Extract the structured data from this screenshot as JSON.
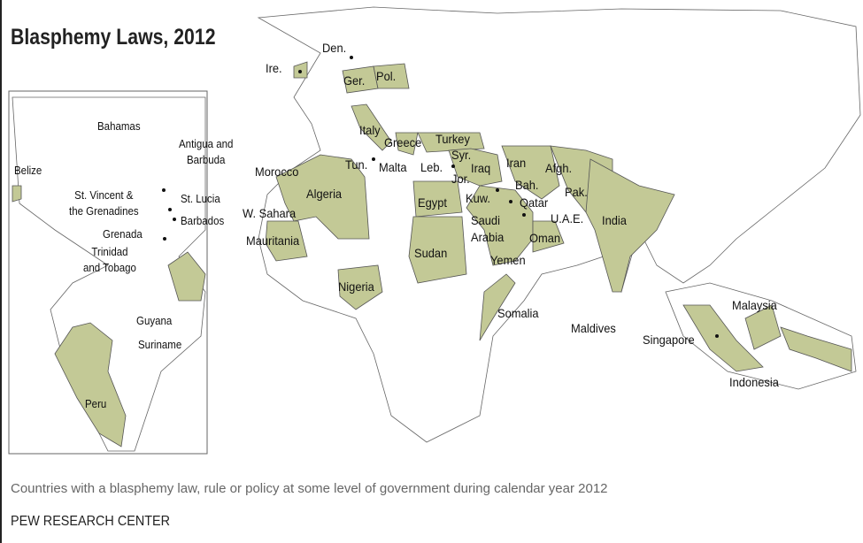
{
  "header": {
    "title": "Blasphemy Laws, 2012"
  },
  "map": {
    "labels": [
      "Den.",
      "Ire.",
      "Ger.",
      "Pol.",
      "Italy",
      "Greece",
      "Turkey",
      "Syr.",
      "Morocco",
      "Tun.",
      "Malta",
      "Leb.",
      "Iraq",
      "Iran",
      "Afgh.",
      "Jor.",
      "Algeria",
      "Bah.",
      "Pak.",
      "Kuw.",
      "Qatar",
      "Egypt",
      "W. Sahara",
      "Saudi\nArabia",
      "U.A.E.",
      "India",
      "Oman",
      "Mauritania",
      "Yemen",
      "Sudan",
      "Nigeria",
      "Malaysia",
      "Somalia",
      "Maldives",
      "Singapore",
      "Indonesia"
    ],
    "inset_labels": [
      "Bahamas",
      "Antigua and\nBarbuda",
      "Belize",
      "St. Vincent &\nthe Grenadines",
      "St. Lucia",
      "Barbados",
      "Grenada",
      "Trinidad\nand Tobago",
      "Guyana",
      "Suriname",
      "Peru"
    ]
  },
  "footer": {
    "caption": "Countries with a blasphemy law, rule or policy at some level of government during calendar year 2012",
    "source": "PEW RESEARCH CENTER"
  }
}
